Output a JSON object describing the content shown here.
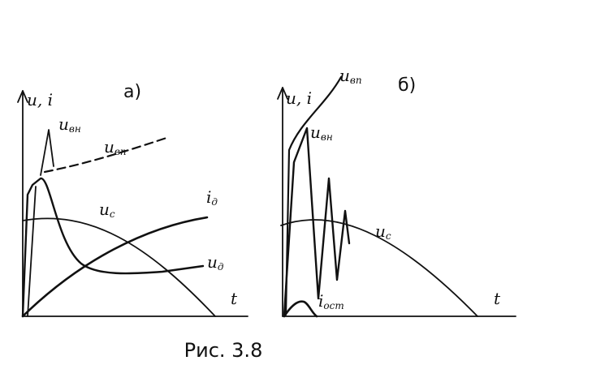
{
  "panels": [
    {
      "label": "а)",
      "axis_label": "u, i",
      "time_label": "t",
      "curves": [
        {
          "main": "u",
          "sub": "вн"
        },
        {
          "main": "u",
          "sub": "вп"
        },
        {
          "main": "u",
          "sub": "c"
        },
        {
          "main": "i",
          "sub": "д"
        },
        {
          "main": "u",
          "sub": "д"
        }
      ]
    },
    {
      "label": "б)",
      "axis_label": "u, i",
      "time_label": "t",
      "curves": [
        {
          "main": "u",
          "sub": "вп"
        },
        {
          "main": "u",
          "sub": "вн"
        },
        {
          "main": "u",
          "sub": "c"
        },
        {
          "main": "i",
          "sub": "ост"
        }
      ]
    }
  ],
  "caption": "Рис. 3.8"
}
